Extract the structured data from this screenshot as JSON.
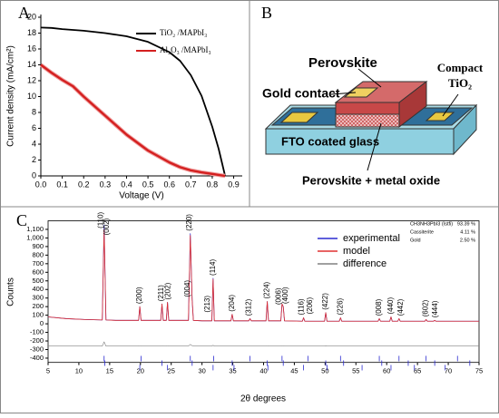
{
  "chart_data": [
    {
      "type": "line",
      "panel_label": "A",
      "xlabel": "Voltage (V)",
      "ylabel": "Current density (mA/cm²)",
      "xlim": [
        0,
        0.94
      ],
      "ylim": [
        0,
        20
      ],
      "xticks": [
        {
          "value": 0,
          "label": "0.0"
        },
        {
          "value": 0.1,
          "label": "0.1"
        },
        {
          "value": 0.2,
          "label": "0.2"
        },
        {
          "value": 0.3,
          "label": "0.3"
        },
        {
          "value": 0.4,
          "label": "0.4"
        },
        {
          "value": 0.5,
          "label": "0.5"
        },
        {
          "value": 0.6,
          "label": "0.6"
        },
        {
          "value": 0.7,
          "label": "0.7"
        },
        {
          "value": 0.8,
          "label": "0.8"
        },
        {
          "value": 0.9,
          "label": "0.9"
        }
      ],
      "yticks": [
        0,
        2,
        4,
        6,
        8,
        10,
        12,
        14,
        16,
        18,
        20
      ],
      "x": [
        0,
        0.05,
        0.1,
        0.15,
        0.2,
        0.3,
        0.4,
        0.5,
        0.6,
        0.65,
        0.7,
        0.75,
        0.8,
        0.83,
        0.86
      ],
      "series": [
        {
          "name": "TiO₂ /MAPbI₃",
          "color": "#000000",
          "values": [
            18.7,
            18.65,
            18.5,
            18.4,
            18.3,
            18.0,
            17.6,
            16.9,
            15.6,
            14.5,
            12.7,
            10.1,
            6.2,
            3.4,
            0
          ]
        },
        {
          "name": "Al₂O₃ /MAPbI₃",
          "color": "#d42020",
          "values": [
            14.0,
            13.0,
            12.1,
            11.3,
            10.0,
            7.6,
            5.2,
            3.2,
            1.7,
            1.1,
            0.7,
            0.45,
            0.25,
            0.12,
            0
          ]
        }
      ]
    },
    {
      "type": "line",
      "panel_label": "C",
      "xlabel": "2θ degrees",
      "ylabel": "Counts",
      "xlim": [
        5,
        75
      ],
      "ylim": [
        -450,
        1200
      ],
      "xticks": [
        5,
        10,
        15,
        20,
        25,
        30,
        35,
        40,
        45,
        50,
        55,
        60,
        65,
        70,
        75
      ],
      "yticks": [
        -400,
        -300,
        -200,
        -100,
        0,
        100,
        200,
        300,
        400,
        500,
        600,
        700,
        800,
        900,
        {
          "value": 1000,
          "label": "1,000"
        },
        {
          "value": 1100,
          "label": "1,100"
        }
      ],
      "x": [
        5,
        8,
        11,
        13.8,
        14.1,
        14.4,
        16,
        19.7,
        19.9,
        20.1,
        23.3,
        23.5,
        23.7,
        24.2,
        24.4,
        24.6,
        27.8,
        28.1,
        28.4,
        28.6,
        30,
        31.6,
        31.8,
        32.0,
        34.7,
        34.9,
        35.1,
        37.6,
        37.8,
        38.0,
        40.4,
        40.6,
        40.8,
        42.8,
        43.0,
        43.2,
        43.4,
        46.3,
        46.5,
        46.7,
        49.9,
        50.1,
        50.3,
        52.3,
        52.5,
        52.7,
        58.6,
        58.8,
        59.0,
        60.5,
        60.7,
        60.9,
        61.8,
        62.0,
        62.2,
        66.2,
        66.4,
        66.6,
        67.6,
        67.8,
        68.0,
        71,
        75
      ],
      "series": [
        {
          "name": "experimental",
          "color": "#2a2ad0",
          "values": [
            80,
            60,
            50,
            45,
            1150,
            45,
            40,
            40,
            200,
            40,
            40,
            230,
            40,
            40,
            250,
            40,
            40,
            1050,
            280,
            40,
            35,
            35,
            530,
            35,
            35,
            110,
            35,
            35,
            60,
            35,
            35,
            260,
            35,
            35,
            230,
            200,
            35,
            30,
            70,
            30,
            30,
            130,
            30,
            30,
            70,
            30,
            30,
            60,
            30,
            30,
            80,
            30,
            30,
            60,
            30,
            30,
            50,
            30,
            30,
            40,
            30,
            30,
            30
          ]
        },
        {
          "name": "model",
          "color": "#e03030",
          "values": [
            80,
            60,
            50,
            45,
            1100,
            45,
            40,
            40,
            200,
            40,
            40,
            230,
            40,
            40,
            250,
            40,
            40,
            1030,
            280,
            40,
            35,
            35,
            520,
            35,
            35,
            110,
            35,
            35,
            60,
            35,
            35,
            260,
            35,
            35,
            230,
            200,
            35,
            30,
            70,
            30,
            30,
            130,
            30,
            30,
            70,
            30,
            30,
            60,
            30,
            30,
            80,
            30,
            30,
            60,
            30,
            30,
            50,
            30,
            30,
            40,
            30,
            30,
            30
          ]
        },
        {
          "name": "difference",
          "color": "#808080",
          "values": [
            -260,
            -260,
            -260,
            -260,
            -210,
            -260,
            -260,
            -260,
            -255,
            -260,
            -260,
            -255,
            -260,
            -260,
            -255,
            -260,
            -260,
            -240,
            -255,
            -260,
            -260,
            -260,
            -250,
            -260,
            -260,
            -260,
            -260,
            -260,
            -260,
            -260,
            -260,
            -255,
            -260,
            -260,
            -258,
            -258,
            -260,
            -260,
            -260,
            -260,
            -260,
            -258,
            -260,
            -260,
            -260,
            -260,
            -260,
            -260,
            -260,
            -260,
            -260,
            -260,
            -260,
            -260,
            -260,
            -260,
            -260,
            -260,
            -260,
            -260,
            -260,
            -260,
            -260
          ]
        }
      ],
      "reflections": [
        14.1,
        14.2,
        19.9,
        20.1,
        23.5,
        24.4,
        28.1,
        28.4,
        31.8,
        31.9,
        34.9,
        35.2,
        37.8,
        40.6,
        40.7,
        43.0,
        43.2,
        46.5,
        47.2,
        50.1,
        50.3,
        52.5,
        53.0,
        56.0,
        58.8,
        59.2,
        60.7,
        62.0,
        63.5,
        64.5,
        66.4,
        67.8,
        69.5,
        71.5,
        73.5
      ],
      "annotations": [
        {
          "text": "(110)",
          "x": 13.6,
          "y": 1080
        },
        {
          "text": "(002)",
          "x": 14.6,
          "y": 1000
        },
        {
          "text": "(200)",
          "x": 19.9,
          "y": 200
        },
        {
          "text": "(211)",
          "x": 23.4,
          "y": 230
        },
        {
          "text": "(202)",
          "x": 24.5,
          "y": 250
        },
        {
          "text": "(220)",
          "x": 28.0,
          "y": 1050
        },
        {
          "text": "(004)",
          "x": 27.7,
          "y": 280
        },
        {
          "text": "(213)",
          "x": 30.9,
          "y": 100
        },
        {
          "text": "(114)",
          "x": 31.8,
          "y": 530
        },
        {
          "text": "(204)",
          "x": 34.9,
          "y": 110
        },
        {
          "text": "(312)",
          "x": 37.6,
          "y": 60
        },
        {
          "text": "(224)",
          "x": 40.6,
          "y": 260
        },
        {
          "text": "(006)",
          "x": 42.5,
          "y": 190
        },
        {
          "text": "(400)",
          "x": 43.6,
          "y": 200
        },
        {
          "text": "(116)",
          "x": 46.2,
          "y": 70
        },
        {
          "text": "(206)",
          "x": 47.6,
          "y": 80
        },
        {
          "text": "(422)",
          "x": 50.1,
          "y": 130
        },
        {
          "text": "(226)",
          "x": 52.5,
          "y": 70
        },
        {
          "text": "(008)",
          "x": 58.8,
          "y": 60
        },
        {
          "text": "(440)",
          "x": 60.7,
          "y": 80
        },
        {
          "text": "(442)",
          "x": 62.3,
          "y": 60
        },
        {
          "text": "(602)",
          "x": 66.4,
          "y": 50
        },
        {
          "text": "(444)",
          "x": 67.9,
          "y": 40
        }
      ],
      "phases": [
        {
          "name": "CH3NH3PbI3 (Istfi)",
          "value": 93.39,
          "label": "93.39 %",
          "color": "#2a2ad0"
        },
        {
          "name": "Cassiterite",
          "value": 4.11,
          "label": "4.11 %",
          "color": "#000000"
        },
        {
          "name": "Gold",
          "value": 2.5,
          "label": "2.50 %",
          "color": "#1a9a1a"
        }
      ]
    }
  ],
  "diagram": {
    "panel_label": "B",
    "perovskite": "Perovskite",
    "gold_contact": "Gold contact",
    "compact": [
      "Compact",
      "TiO₂"
    ],
    "glass": "FTO coated glass",
    "mixed": "Perovskite + metal oxide"
  }
}
